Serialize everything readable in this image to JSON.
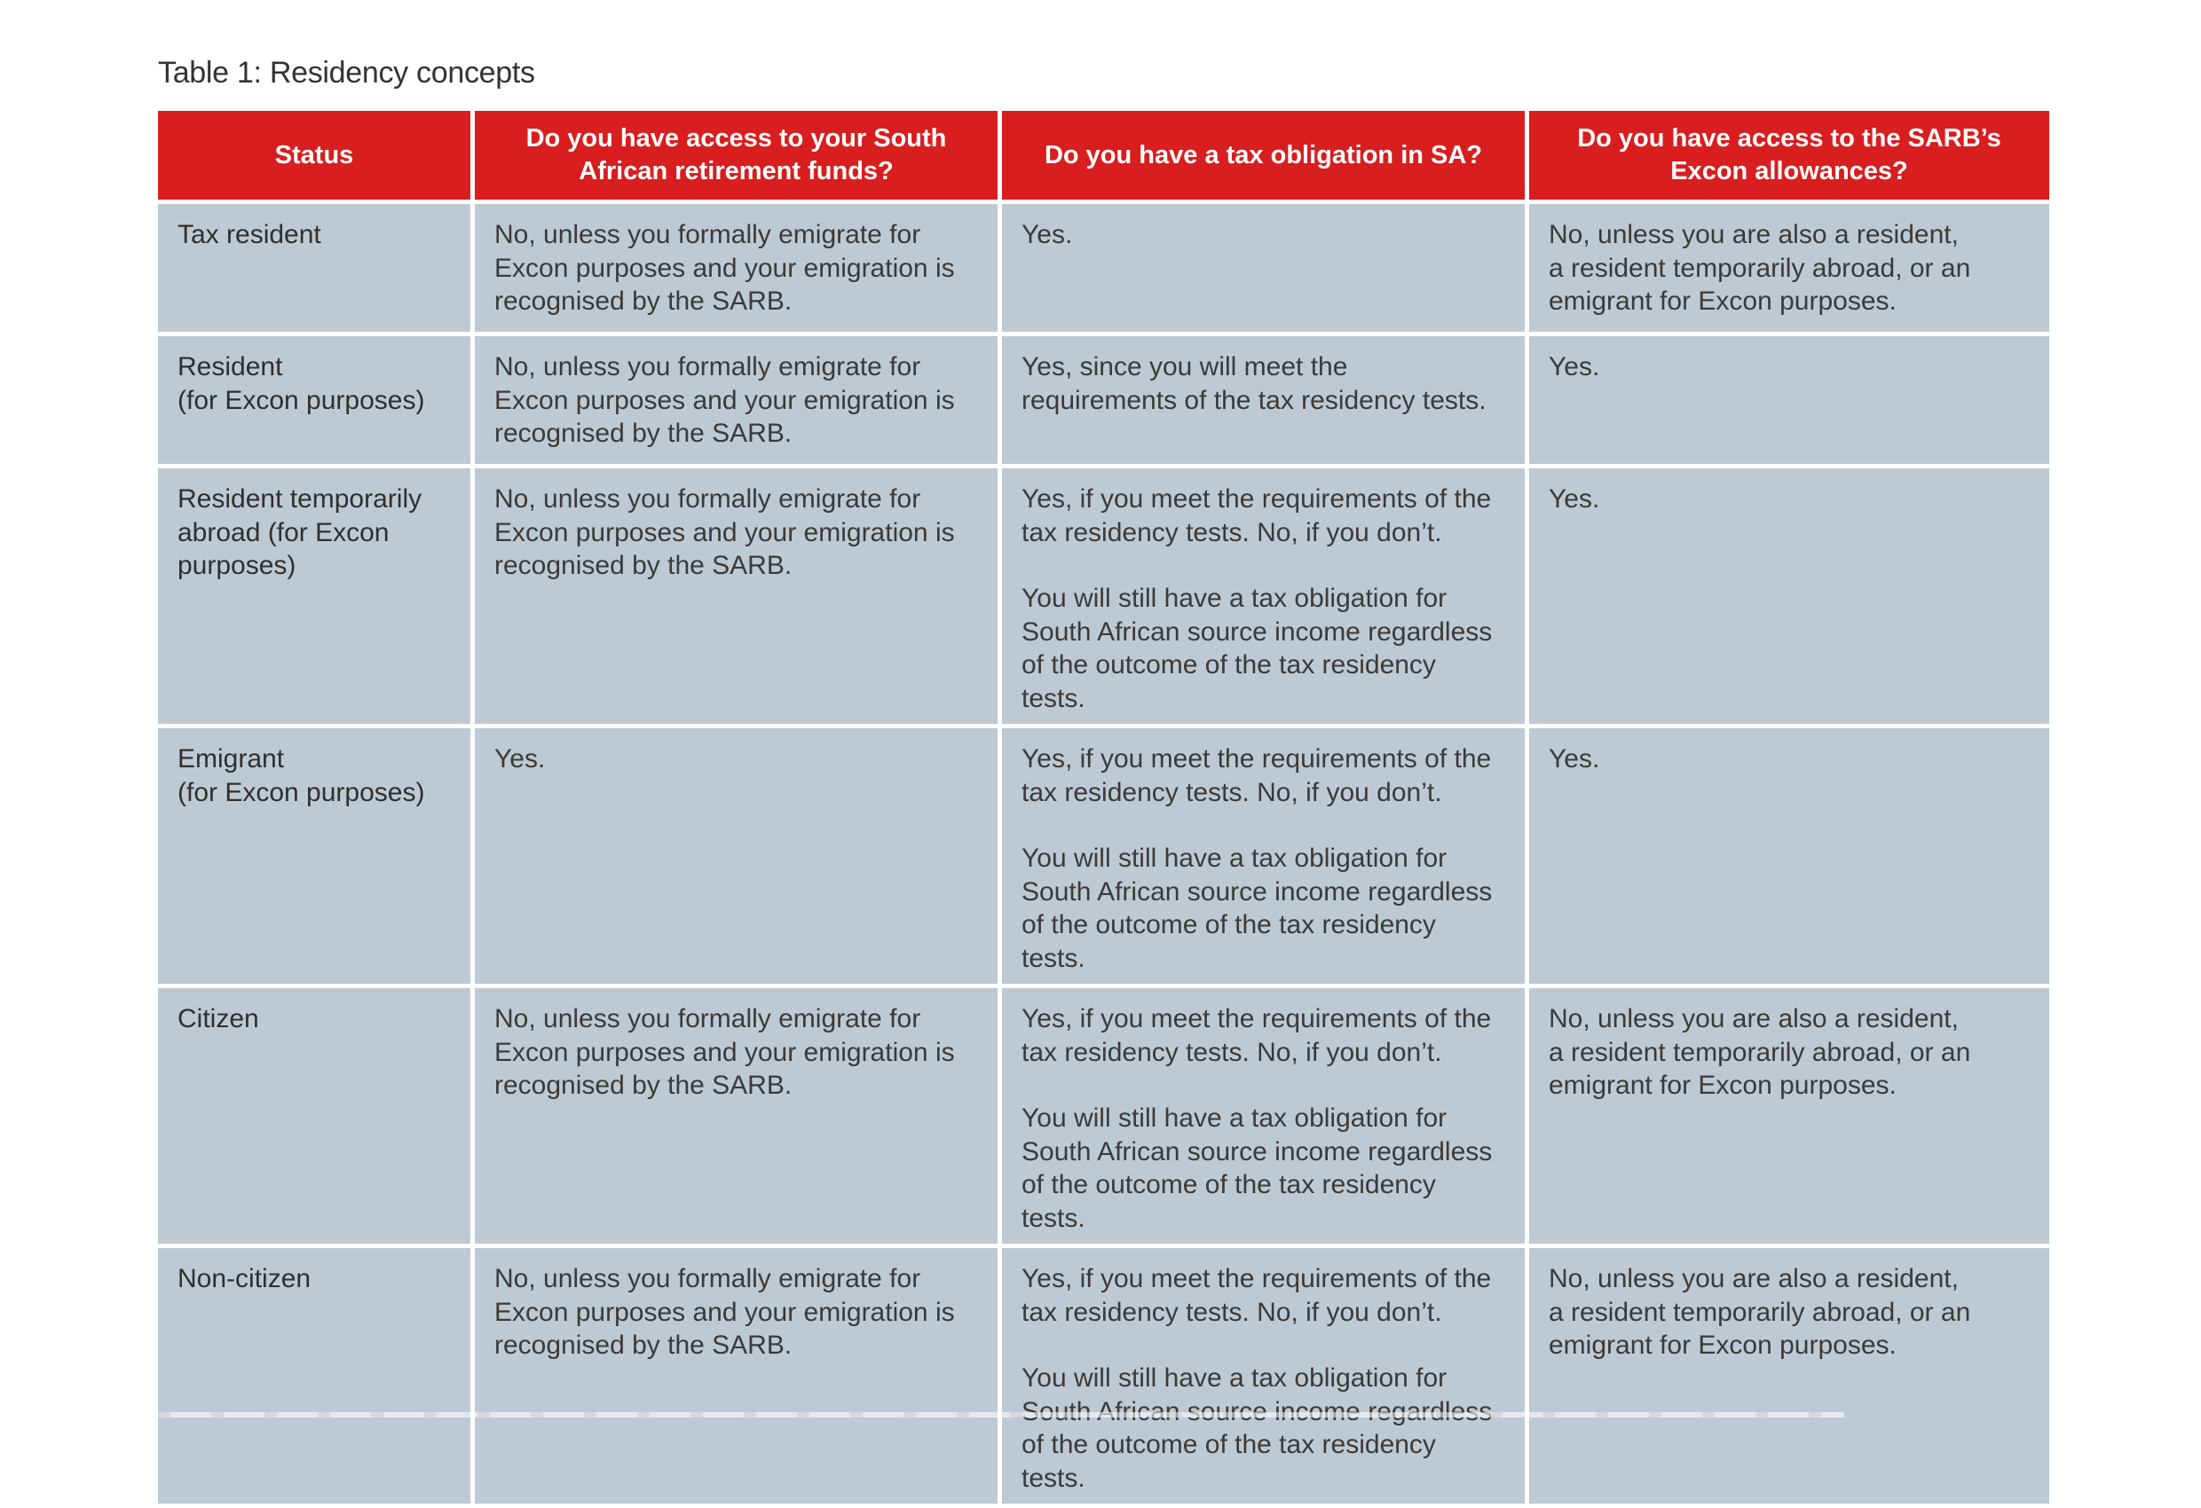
{
  "caption": "Table 1: Residency concepts",
  "table": {
    "headers": [
      "Status",
      "Do you have access to your South African retirement funds?",
      "Do you have a tax obligation in SA?",
      "Do you have access to the SARB’s Excon allowances?"
    ],
    "rows": [
      {
        "status": "Tax resident",
        "retirement": [
          "No, unless you formally emigrate for Excon purposes and your emigration is recognised by the SARB."
        ],
        "tax": [
          "Yes."
        ],
        "excon": [
          "No, unless you are also a resident,\na resident temporarily abroad, or an emigrant for Excon purposes."
        ]
      },
      {
        "status": "Resident\n(for Excon purposes)",
        "retirement": [
          "No, unless you formally emigrate for Excon purposes and your emigration is recognised by the SARB."
        ],
        "tax": [
          "Yes, since you will meet the requirements of the tax residency tests."
        ],
        "excon": [
          "Yes."
        ]
      },
      {
        "status": "Resident temporarily abroad (for Excon purposes)",
        "retirement": [
          "No, unless you formally emigrate for Excon purposes and your emigration is recognised by the SARB."
        ],
        "tax": [
          "Yes, if you meet the requirements of the tax residency tests. No, if you don’t.",
          "You will still have a tax obligation for South African source income regardless of the outcome of the tax residency tests."
        ],
        "excon": [
          "Yes."
        ]
      },
      {
        "status": "Emigrant\n(for Excon purposes)",
        "retirement": [
          "Yes."
        ],
        "tax": [
          "Yes, if you meet the requirements of the tax residency tests. No, if you don’t.",
          "You will still have a tax obligation for South African source income regardless of the outcome of the tax residency tests."
        ],
        "excon": [
          "Yes."
        ]
      },
      {
        "status": "Citizen",
        "retirement": [
          "No, unless you formally emigrate for Excon purposes and your emigration is recognised by the SARB."
        ],
        "tax": [
          "Yes, if you meet the requirements of the tax residency tests. No, if you don’t.",
          "You will still have a tax obligation for South African source income regardless of the outcome of the tax residency tests."
        ],
        "excon": [
          "No, unless you are also a resident,\na resident temporarily abroad, or an emigrant for Excon purposes."
        ]
      },
      {
        "status": "Non-citizen",
        "retirement": [
          "No, unless you formally emigrate for Excon purposes and your emigration is recognised by the SARB."
        ],
        "tax": [
          "Yes, if you meet the requirements of the tax residency tests. No, if you don’t.",
          "You will still have a tax obligation for South African source income regardless of the outcome of the tax residency tests."
        ],
        "excon": [
          "No, unless you are also a resident,\na resident temporarily abroad, or an emigrant for Excon purposes."
        ]
      }
    ]
  },
  "colors": {
    "header_bg": "#d81e1e",
    "header_text": "#ffffff",
    "cell_bg": "#bdcad4"
  }
}
